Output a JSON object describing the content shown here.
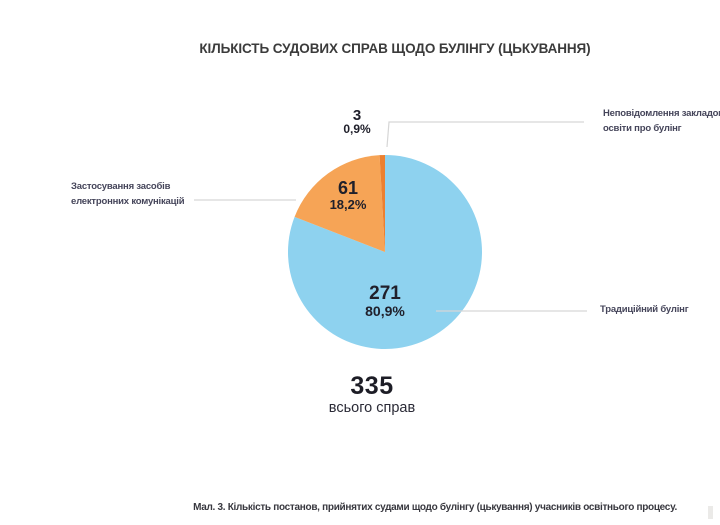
{
  "page": {
    "title": "КІЛЬКІСТЬ СУДОВИХ СПРАВ ЩОДО БУЛІНГУ (ЦЬКУВАННЯ)",
    "caption": "Мал. 3. Кількість постанов, прийнятих судами щодо булінгу (цькування) учасників освітнього процесу."
  },
  "colors": {
    "traditional_blue": "#8ed2ef",
    "electronic_orange": "#f6a456",
    "nonreport_dark_orange": "#ec8030",
    "connector_gray": "#d6d6d6"
  },
  "chart_data": {
    "type": "pie",
    "title": "КІЛЬКІСТЬ СУДОВИХ СПРАВ ЩОДО БУЛІНГУ (ЦЬКУВАННЯ)",
    "direction": "clockwise",
    "start_angle_deg": 0,
    "total": 335,
    "total_label": "всього справ",
    "slices": [
      {
        "name": "Традиційний булінг",
        "value": 271,
        "pct_label": "80,9%",
        "color": "#8ed2ef"
      },
      {
        "name": "Застосування засобів електронних комунікацій",
        "value": 61,
        "pct_label": "18,2%",
        "color": "#f6a456"
      },
      {
        "name": "Неповідомлення закладом освіти про булінг",
        "value": 3,
        "pct_label": "0,9%",
        "color": "#ec8030"
      }
    ]
  },
  "callouts": {
    "nonreport": {
      "line1": "Неповідомлення закладом",
      "line2": "освіти про булінг"
    },
    "electronic": {
      "line1": "Застосування засобів",
      "line2": "електронних комунікацій"
    },
    "traditional": {
      "line1": "Традиційний булінг"
    }
  }
}
